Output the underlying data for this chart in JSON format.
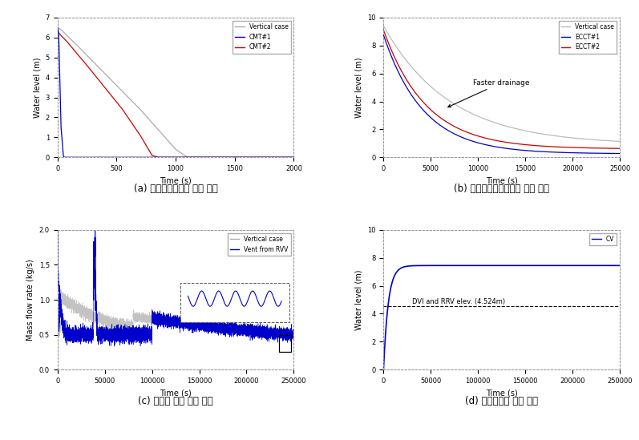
{
  "subplot_a": {
    "title": "(a) 노심보충수조의 수위 변화",
    "xlabel": "Time (s)",
    "ylabel": "Water level (m)",
    "xlim": [
      0,
      2000
    ],
    "ylim": [
      0,
      7
    ],
    "yticks": [
      0,
      1,
      2,
      3,
      4,
      5,
      6,
      7
    ],
    "xticks": [
      0,
      500,
      1000,
      1500,
      2000
    ],
    "legend": [
      "Vertical case",
      "CMT#1",
      "CMT#2"
    ],
    "legend_colors": [
      "#aaaaaa",
      "#0000cc",
      "#cc0000"
    ]
  },
  "subplot_b": {
    "title": "(b) 비상노심냉각수조의 수위 변화",
    "xlabel": "Time (s)",
    "ylabel": "Water level (m)",
    "xlim": [
      0,
      25000
    ],
    "ylim": [
      0,
      10
    ],
    "yticks": [
      0,
      2,
      4,
      6,
      8,
      10
    ],
    "xticks": [
      0,
      5000,
      10000,
      15000,
      20000,
      25000
    ],
    "legend": [
      "Vertical case",
      "ECCT#1",
      "ECCT#2"
    ],
    "legend_colors": [
      "#bbbbbb",
      "#0000cc",
      "#cc0000"
    ],
    "annotation": "Faster drainage"
  },
  "subplot_c": {
    "title": "(c) 재순환 질량 유량 변화",
    "xlabel": "Time (s)",
    "ylabel": "Mass flow rate (kg/s)",
    "xlim": [
      0,
      250000
    ],
    "ylim": [
      0.0,
      2.0
    ],
    "yticks": [
      0.0,
      0.5,
      1.0,
      1.5,
      2.0
    ],
    "xticks": [
      0,
      50000,
      100000,
      150000,
      200000,
      250000
    ],
    "legend": [
      "Vertical case",
      "Vent from RVV"
    ],
    "legend_colors": [
      "#aaaaaa",
      "#0000cc"
    ]
  },
  "subplot_d": {
    "title": "(d) 격납용기의 수위 변화",
    "xlabel": "Time (s)",
    "ylabel": "Water level (m)",
    "xlim": [
      0,
      250000
    ],
    "ylim": [
      0,
      10
    ],
    "yticks": [
      0,
      2,
      4,
      6,
      8,
      10
    ],
    "xticks": [
      0,
      50000,
      100000,
      150000,
      200000,
      250000
    ],
    "legend": [
      "CV"
    ],
    "legend_colors": [
      "#0000cc"
    ],
    "dvi_level": 4.524,
    "annotation": "DVI and RRV elev. (4.524m)"
  }
}
